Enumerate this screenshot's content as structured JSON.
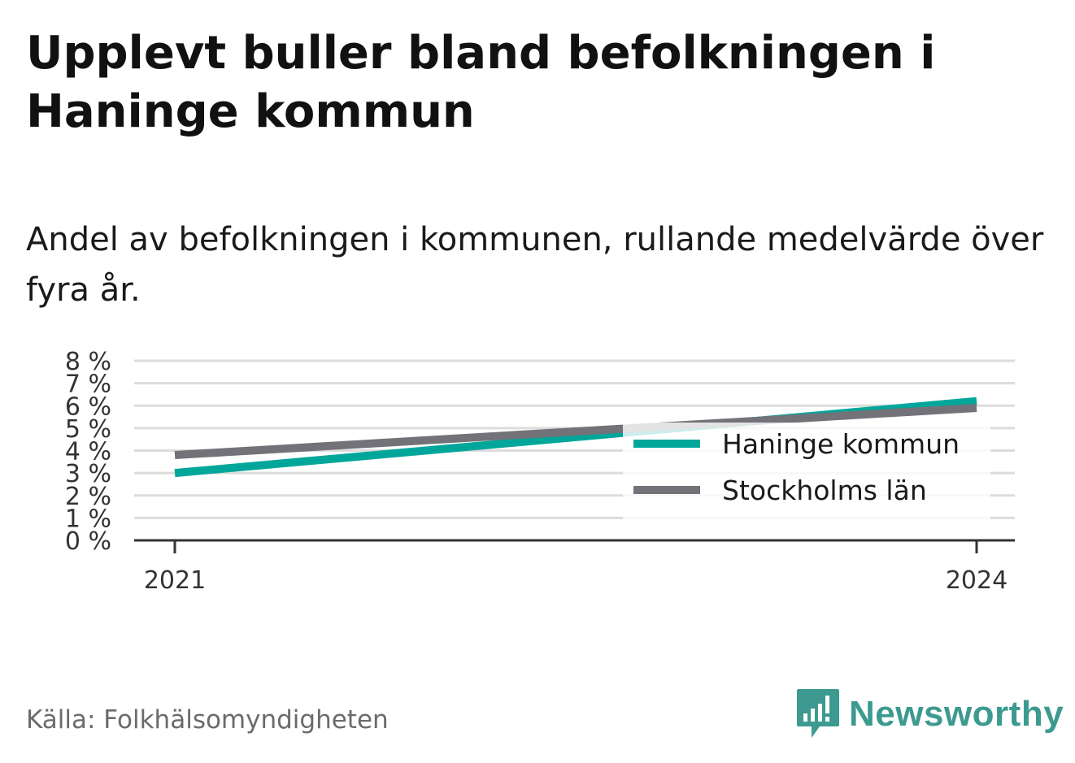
{
  "title": "Upplevt buller bland befolkningen i Haninge kommun",
  "subtitle": "Andel av befolkningen i kommunen, rullande medelvärde över fyra år.",
  "source": "Källa: Folkhälsomyndigheten",
  "brand": {
    "name": "Newsworthy",
    "icon": "newsworthy-logo-icon",
    "color": "#3d9a90"
  },
  "chart_data": {
    "type": "line",
    "x": [
      2021,
      2024
    ],
    "x_tick_labels": [
      "2021",
      "2024"
    ],
    "y_tick_labels": [
      "0 %",
      "1 %",
      "2 %",
      "3 %",
      "4 %",
      "5 %",
      "6 %",
      "7 %",
      "8 %"
    ],
    "ylim": [
      0,
      8
    ],
    "grid": true,
    "legend_position": "right",
    "series": [
      {
        "name": "Haninge kommun",
        "values": [
          3.0,
          6.2
        ],
        "color": "#00a69a"
      },
      {
        "name": "Stockholms län",
        "values": [
          3.8,
          5.9
        ],
        "color": "#737278"
      }
    ]
  }
}
